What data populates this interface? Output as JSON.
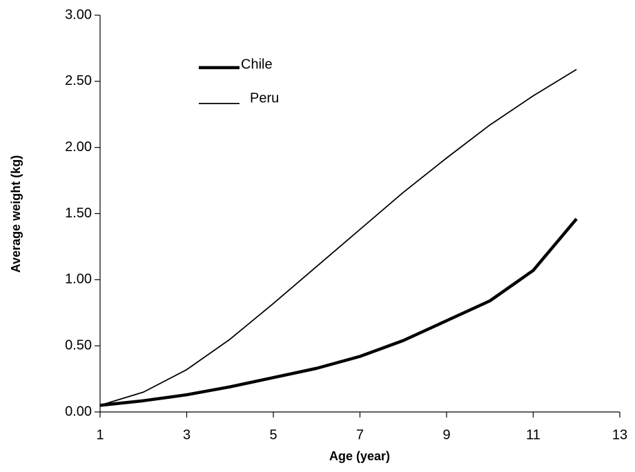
{
  "chart_data": {
    "type": "line",
    "x_label": "Age (year)",
    "y_label": "Average weight (kg)",
    "x": [
      1,
      2,
      3,
      4,
      5,
      6,
      7,
      8,
      9,
      10,
      11,
      12
    ],
    "series": [
      {
        "name": "Chile",
        "color": "#000000",
        "values": [
          0.05,
          0.085,
          0.13,
          0.19,
          0.26,
          0.33,
          0.42,
          0.54,
          0.69,
          0.84,
          1.07,
          1.46
        ]
      },
      {
        "name": "Peru",
        "color": "#000000",
        "values": [
          0.05,
          0.15,
          0.32,
          0.55,
          0.82,
          1.1,
          1.38,
          1.66,
          1.92,
          2.17,
          2.39,
          2.59
        ]
      }
    ],
    "xlim": [
      1,
      13
    ],
    "xticks": [
      1,
      3,
      5,
      7,
      9,
      11,
      13
    ],
    "ylim": [
      0,
      3
    ],
    "yticks": [
      {
        "value": 0,
        "label": "0.00"
      },
      {
        "value": 0.5,
        "label": "0.50"
      },
      {
        "value": 1,
        "label": "1.00"
      },
      {
        "value": 1.5,
        "label": "1.50"
      },
      {
        "value": 2,
        "label": "2.00"
      },
      {
        "value": 2.5,
        "label": "2.50"
      },
      {
        "value": 3,
        "label": "3.00"
      }
    ],
    "grid": false,
    "legend": "upper left"
  }
}
